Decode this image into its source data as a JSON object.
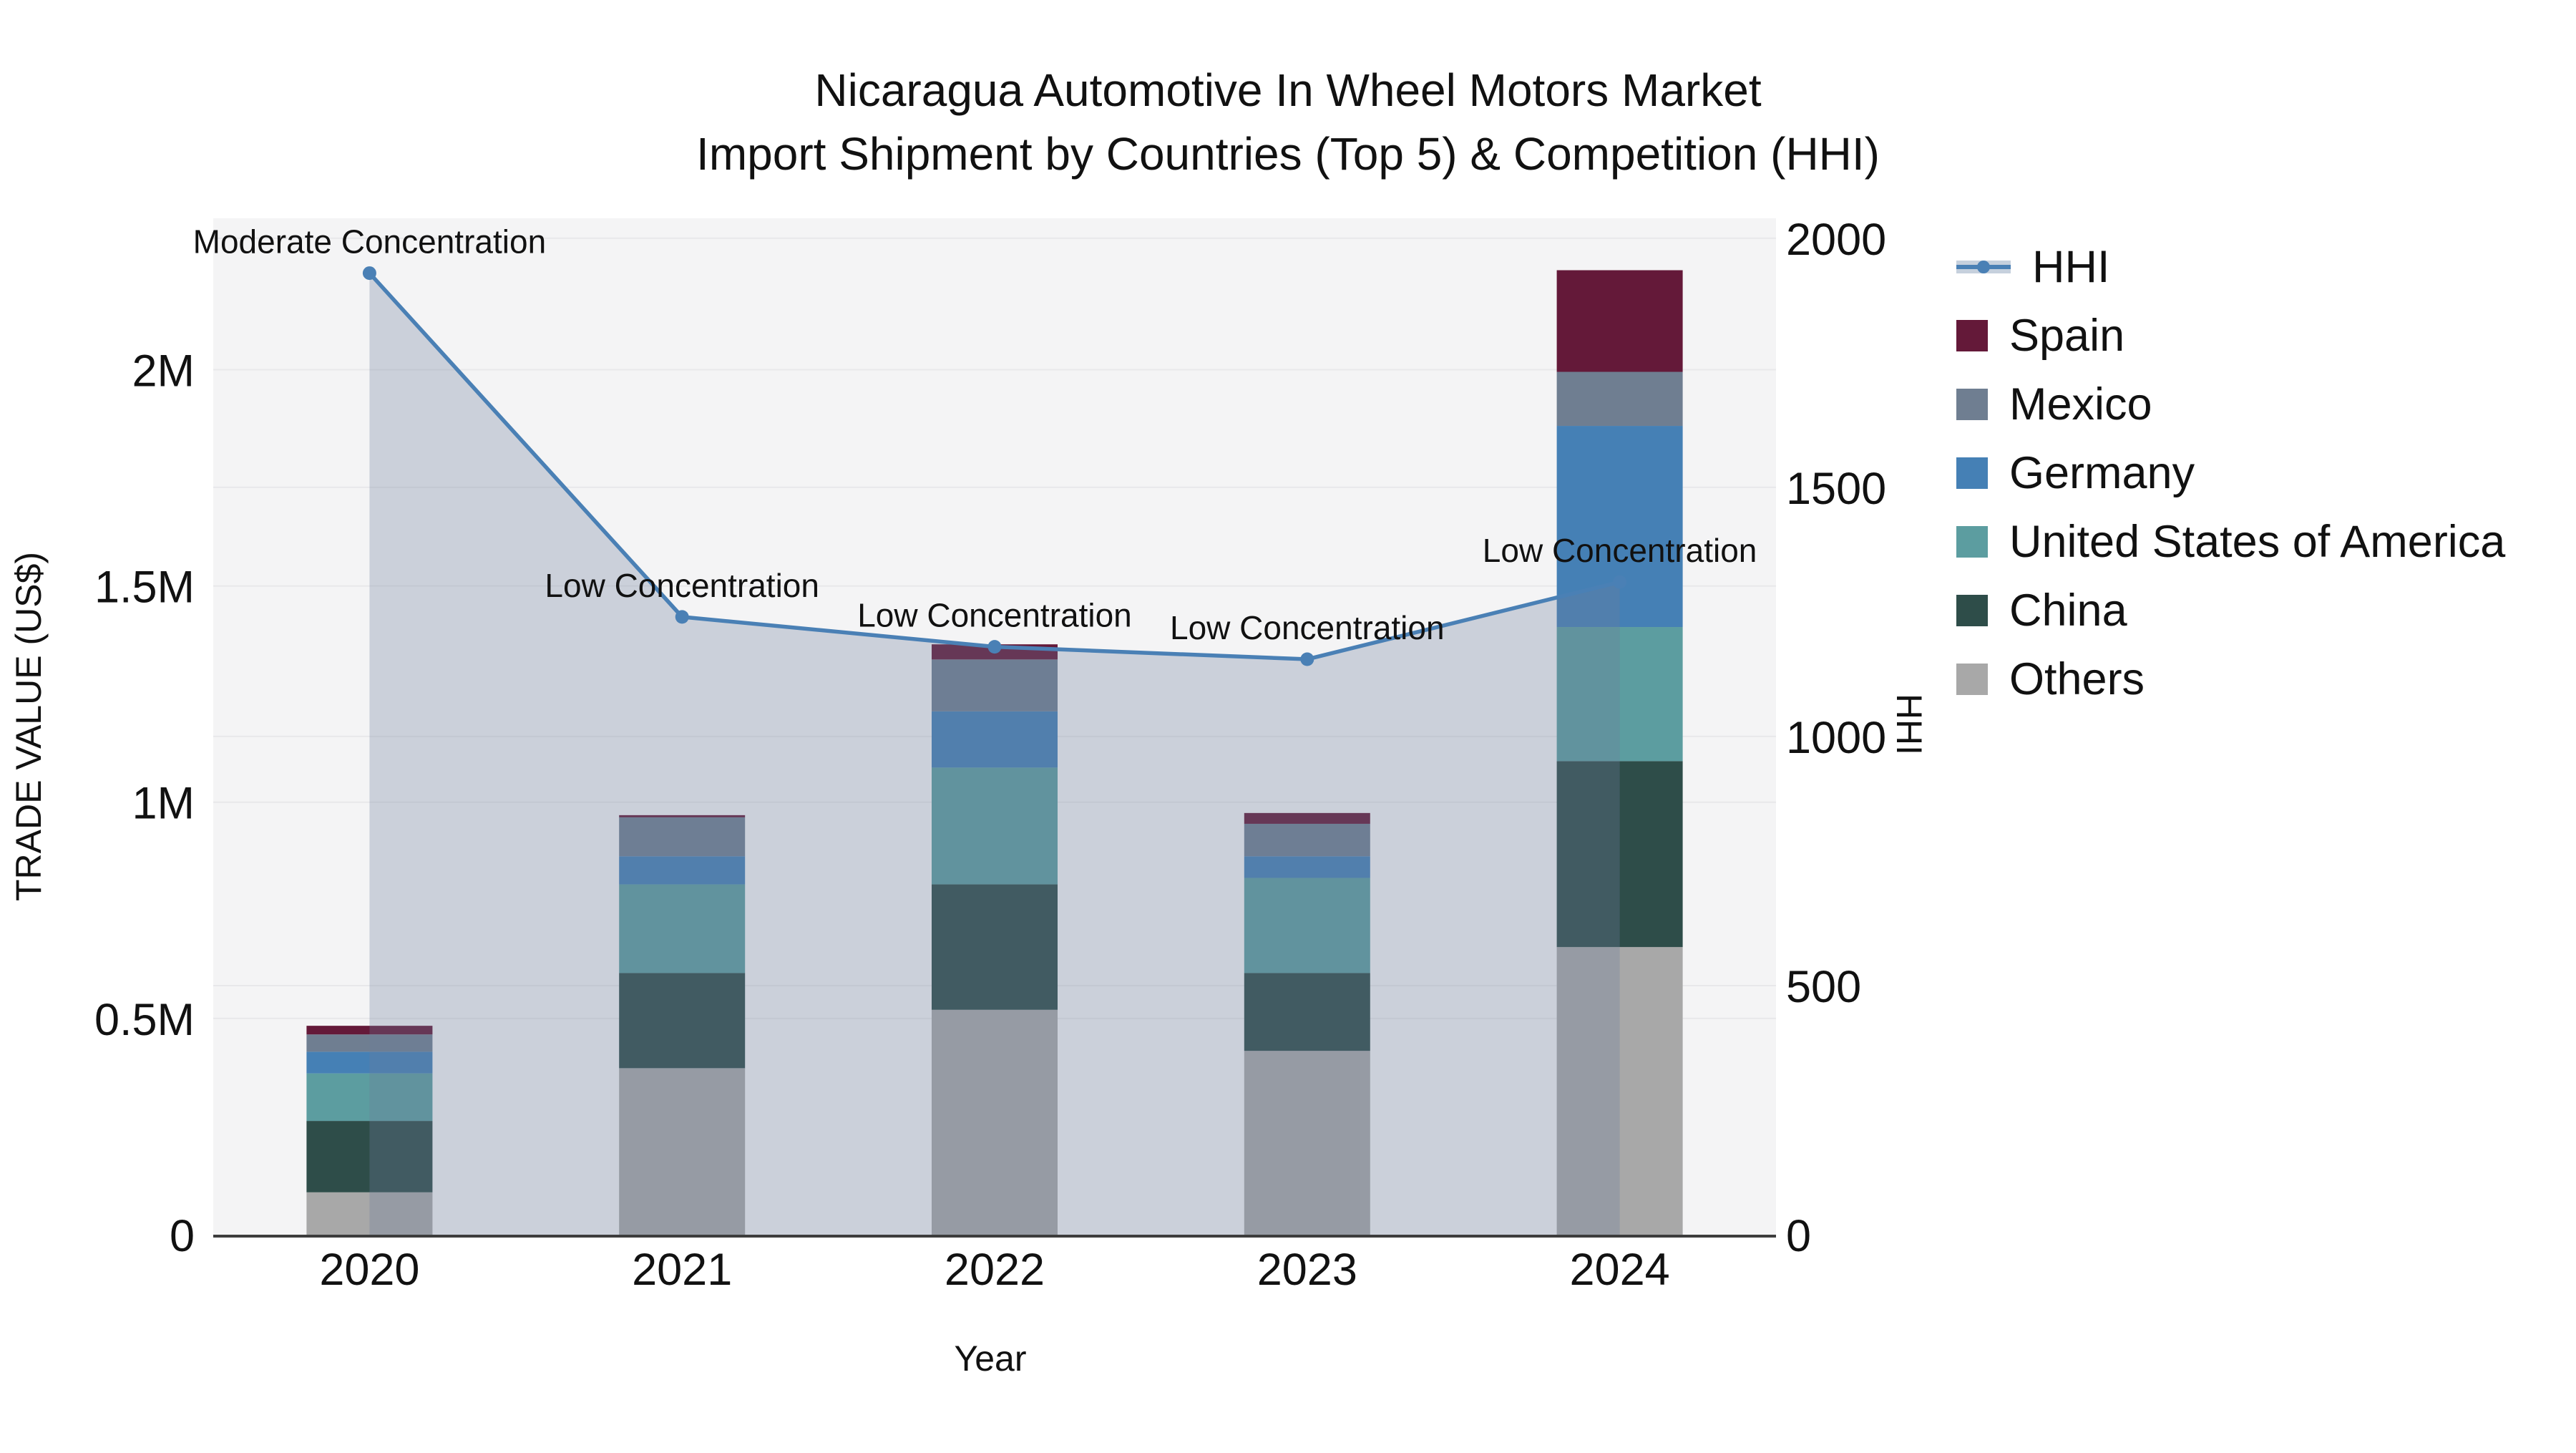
{
  "title": {
    "line1": "Nicaragua Automotive In Wheel Motors Market",
    "line2": "Import Shipment by Countries (Top 5) & Competition (HHI)"
  },
  "colors": {
    "plot_bg": "#f4f4f5",
    "grid": "#e8e8ea",
    "axis_line": "#3d3d3d",
    "text": "#111111",
    "hhi_line": "#4a80b5",
    "hhi_fill": "rgba(110,127,154,0.30)",
    "hhi_band": "#c6d0dd"
  },
  "legend": {
    "items": [
      {
        "key": "hhi",
        "label": "HHI",
        "color": "#4a80b5",
        "type": "line"
      },
      {
        "key": "spain",
        "label": "Spain",
        "color": "#641939",
        "type": "box"
      },
      {
        "key": "mexico",
        "label": "Mexico",
        "color": "#6f7e91",
        "type": "box"
      },
      {
        "key": "germany",
        "label": "Germany",
        "color": "#4580b5",
        "type": "box"
      },
      {
        "key": "usa",
        "label": "United States of America",
        "color": "#5c9da0",
        "type": "box"
      },
      {
        "key": "china",
        "label": "China",
        "color": "#2e4d49",
        "type": "box"
      },
      {
        "key": "others",
        "label": "Others",
        "color": "#a8a8a8",
        "type": "box"
      }
    ]
  },
  "chart_data": {
    "type": "bar+line",
    "categories": [
      "2020",
      "2021",
      "2022",
      "2023",
      "2024"
    ],
    "bar_unit": "million US$",
    "bar_stack_order": "bottom to top",
    "bar_series": [
      {
        "name": "Others",
        "key": "others",
        "color": "#a8a8a8",
        "values": [
          0.098,
          0.385,
          0.52,
          0.425,
          0.665
        ]
      },
      {
        "name": "China",
        "key": "china",
        "color": "#2e4d49",
        "values": [
          0.165,
          0.22,
          0.29,
          0.18,
          0.43
        ]
      },
      {
        "name": "United States of America",
        "key": "usa",
        "color": "#5c9da0",
        "values": [
          0.11,
          0.205,
          0.27,
          0.22,
          0.31
        ]
      },
      {
        "name": "Germany",
        "key": "germany",
        "color": "#4580b5",
        "values": [
          0.05,
          0.065,
          0.13,
          0.05,
          0.465
        ]
      },
      {
        "name": "Mexico",
        "key": "mexico",
        "color": "#6f7e91",
        "values": [
          0.04,
          0.09,
          0.12,
          0.075,
          0.125
        ]
      },
      {
        "name": "Spain",
        "key": "spain",
        "color": "#641939",
        "values": [
          0.02,
          0.005,
          0.035,
          0.025,
          0.235
        ]
      }
    ],
    "line_series": {
      "name": "HHI",
      "axis": "right",
      "color": "#4a80b5",
      "values": [
        1930,
        1240,
        1180,
        1155,
        1310
      ]
    },
    "annotations": [
      "Moderate Concentration",
      "Low Concentration",
      "Low Concentration",
      "Low Concentration",
      "Low Concentration"
    ],
    "y_left": {
      "label": "TRADE VALUE (US$)",
      "range": [
        0,
        2.35
      ],
      "ticks": [
        {
          "v": 0,
          "t": "0"
        },
        {
          "v": 0.5,
          "t": "0.5M"
        },
        {
          "v": 1,
          "t": "1M"
        },
        {
          "v": 1.5,
          "t": "1.5M"
        },
        {
          "v": 2,
          "t": "2M"
        }
      ]
    },
    "y_right": {
      "label": "HHI",
      "range": [
        0,
        2040
      ],
      "ticks": [
        {
          "v": 0,
          "t": "0"
        },
        {
          "v": 500,
          "t": "500"
        },
        {
          "v": 1000,
          "t": "1000"
        },
        {
          "v": 1500,
          "t": "1500"
        },
        {
          "v": 2000,
          "t": "2000"
        }
      ]
    },
    "x_label": "Year",
    "grid": true,
    "legend_position": "right"
  }
}
